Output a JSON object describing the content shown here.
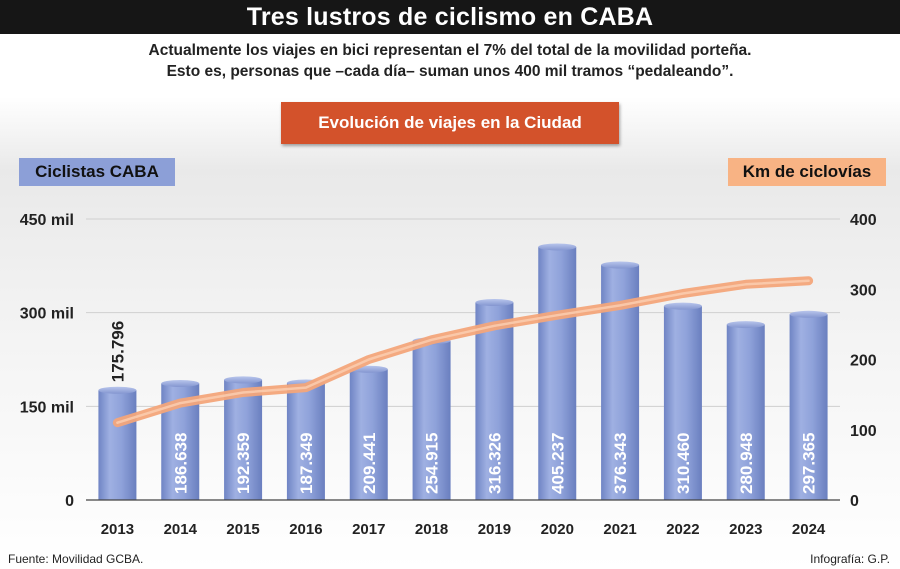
{
  "header": {
    "title": "Tres lustros de ciclismo en CABA",
    "subtitle_line1": "Actualmente los viajes en bici representan el 7% del total de la movilidad porteña.",
    "subtitle_line2": "Esto es, personas que –cada día– suman unos 400 mil tramos “pedaleando”.",
    "section_label": "Evolución de viajes en la Ciudad"
  },
  "legend": {
    "left": "Ciclistas CABA",
    "right": "Km de ciclovías",
    "left_color": "#8c9fd7",
    "right_color": "#f8b384"
  },
  "footer": {
    "source": "Fuente: Movilidad GCBA.",
    "credit": "Infografía: G.P."
  },
  "chart_data": {
    "type": "bar",
    "categories": [
      "2013",
      "2014",
      "2015",
      "2016",
      "2017",
      "2018",
      "2019",
      "2020",
      "2021",
      "2022",
      "2023",
      "2024"
    ],
    "series": [
      {
        "name": "Ciclistas CABA",
        "type": "bar",
        "axis": "left",
        "color": "#8c9fd7",
        "values": [
          175796,
          186638,
          192359,
          187349,
          209441,
          254915,
          316326,
          405237,
          376343,
          310460,
          280948,
          297365
        ],
        "labels": [
          "175.796",
          "186.638",
          "192.359",
          "187.349",
          "209.441",
          "254.915",
          "316.326",
          "405.237",
          "376.343",
          "310.460",
          "280.948",
          "297.365"
        ]
      },
      {
        "name": "Km de ciclovías",
        "type": "line",
        "axis": "right",
        "color": "#f8a878",
        "values": [
          110,
          138,
          153,
          160,
          200,
          228,
          248,
          263,
          277,
          294,
          307,
          312
        ]
      }
    ],
    "y_left": {
      "min": 0,
      "max": 450000,
      "ticks": [
        0,
        150000,
        300000,
        450000
      ],
      "tick_labels": [
        "0",
        "150 mil",
        "300 mil",
        "450 mil"
      ]
    },
    "y_right": {
      "min": 0,
      "max": 400,
      "ticks": [
        0,
        100,
        200,
        300,
        400
      ],
      "tick_labels": [
        "0",
        "100",
        "200",
        "300",
        "400"
      ]
    },
    "grid": true
  }
}
